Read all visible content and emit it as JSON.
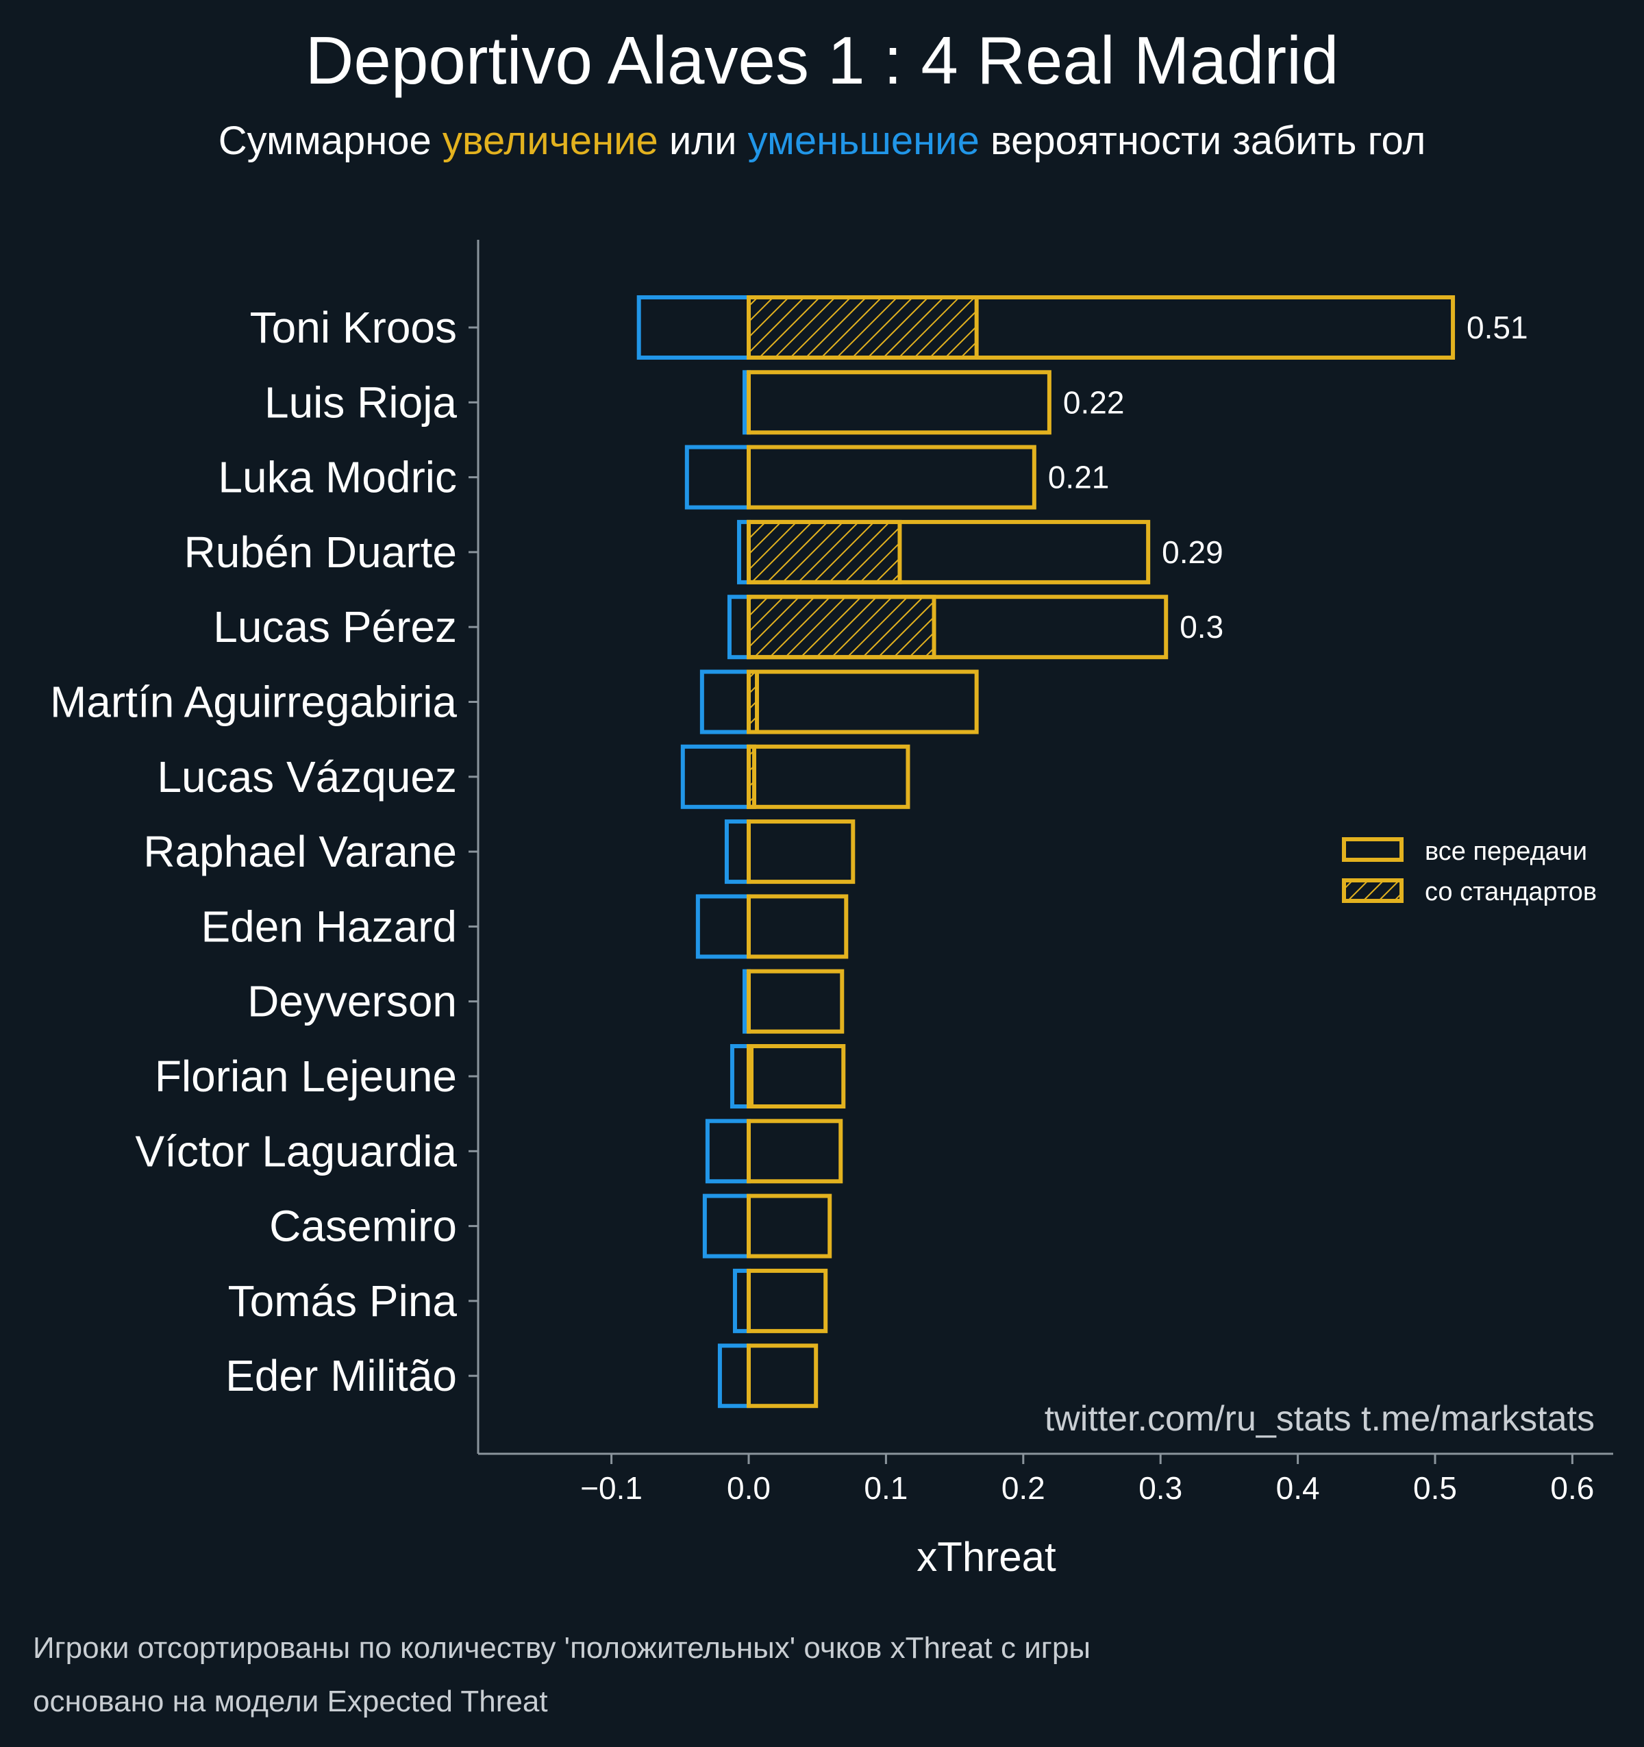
{
  "colors": {
    "background": "#0e1821",
    "positive": "#e3b21f",
    "negative": "#2196e8",
    "text": "#ffffff",
    "muted_text": "#c9ced3",
    "axis": "#8a949c"
  },
  "title": "Deportivo Alaves 1 : 4 Real Madrid",
  "subtitle": {
    "part1": "Суммарное ",
    "increase": "увеличение",
    "part2": " или ",
    "decrease": "уменьшение",
    "part3": " вероятности забить гол"
  },
  "watermark": "twitter.com/ru_stats  t.me/markstats",
  "footnote": {
    "line1": "Игроки отсортированы по количеству 'положительных' очков xThreat с игры",
    "line2": "основано на модели Expected Threat"
  },
  "legend": {
    "all_passes": "все передачи",
    "set_pieces": "со стандартов"
  },
  "chart_data": {
    "type": "bar",
    "orientation": "horizontal",
    "xlabel": "xThreat",
    "ylabel": "",
    "xlim": [
      -0.2,
      0.63
    ],
    "xticks": [
      -0.1,
      0.0,
      0.1,
      0.2,
      0.3,
      0.4,
      0.5,
      0.6
    ],
    "xtick_labels": [
      "−0.1",
      "0.0",
      "0.1",
      "0.2",
      "0.3",
      "0.4",
      "0.5",
      "0.6"
    ],
    "grid": false,
    "legend_position": "right",
    "categories": [
      "Toni Kroos",
      "Luis Rioja",
      "Luka Modric",
      "Rubén Duarte",
      "Lucas Pérez",
      "Martín Aguirregabiria",
      "Lucas Vázquez",
      "Raphael Varane",
      "Eden Hazard",
      "Deyverson",
      "Florian Lejeune",
      "Víctor Laguardia",
      "Casemiro",
      "Tomás Pina",
      "Eder Militão"
    ],
    "series": [
      {
        "name": "все передачи",
        "values": [
          0.513,
          0.219,
          0.208,
          0.291,
          0.304,
          0.166,
          0.116,
          0.076,
          0.071,
          0.068,
          0.069,
          0.067,
          0.059,
          0.056,
          0.049
        ]
      },
      {
        "name": "со стандартов",
        "values": [
          0.166,
          0.0,
          0.0,
          0.11,
          0.135,
          0.006,
          0.004,
          0.0,
          0.0,
          0.0,
          0.002,
          0.0,
          0.0,
          0.0,
          0.0
        ]
      },
      {
        "values": [
          -0.08,
          -0.003,
          -0.045,
          -0.007,
          -0.014,
          -0.034,
          -0.048,
          -0.016,
          -0.037,
          -0.003,
          -0.012,
          -0.03,
          -0.032,
          -0.01,
          -0.021
        ]
      }
    ],
    "data_labels": [
      "0.51",
      "0.22",
      "0.21",
      "0.29",
      "0.3",
      "",
      "",
      "",
      "",
      "",
      "",
      "",
      "",
      "",
      ""
    ]
  }
}
